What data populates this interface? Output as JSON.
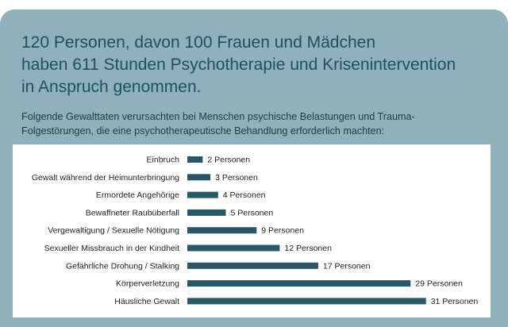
{
  "headline": {
    "line1": "120 Personen, davon 100 Frauen und Mädchen",
    "line2": "haben 611 Stunden Psychotherapie und Krisenintervention",
    "line3": "in Anspruch genommen."
  },
  "intro": {
    "line1": "Folgende Gewalttaten verursachten bei Menschen psychische Belastungen und Trauma-",
    "line2": "Folgestörungen, die eine psychotherapeutische Behandlung erforderlich machten:"
  },
  "colors": {
    "card_bg": "#8fb1bb",
    "headline": "#20505e",
    "bar": "#2a5767"
  },
  "chart_data": {
    "type": "bar",
    "orientation": "horizontal",
    "categories": [
      "Einbruch",
      "Gewalt während der Heimunterbringung",
      "Ermordete Angehörige",
      "Bewaffneter Raubüberfall",
      "Vergewaltigung / Sexuelle Nötigung",
      "Sexueller Missbrauch in der Kindheit",
      "Gefährliche Drohung / Stalking",
      "Körperverletzung",
      "Häusliche Gewalt"
    ],
    "values": [
      2,
      3,
      4,
      5,
      9,
      12,
      17,
      29,
      31
    ],
    "data_labels": [
      "2 Personen",
      "3 Personen",
      "4 Personen",
      "5 Personen",
      "9 Personen",
      "12 Personen",
      "17 Personen",
      "29 Personen",
      "31 Personen"
    ],
    "grid": false,
    "legend": "none"
  }
}
